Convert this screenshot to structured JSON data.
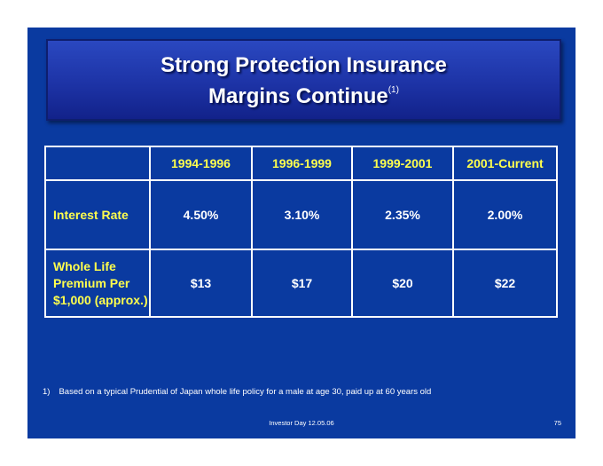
{
  "title": {
    "line1": "Strong Protection Insurance",
    "line2": "Margins Continue",
    "footnote_marker": "(1)"
  },
  "table": {
    "corner": "",
    "columns": [
      "1994-1996",
      "1996-1999",
      "1999-2001",
      "2001-Current"
    ],
    "rows": [
      {
        "label_lines": [
          "Interest Rate"
        ],
        "values": [
          "4.50%",
          "3.10%",
          "2.35%",
          "2.00%"
        ]
      },
      {
        "label_lines": [
          "Whole Life",
          "Premium Per",
          "$1,000 (approx.)"
        ],
        "values": [
          "$13",
          "$17",
          "$20",
          "$22"
        ]
      }
    ]
  },
  "footnote": {
    "number": "1)",
    "text": "Based on a typical Prudential of Japan whole life policy for a male at age 30, paid up at  60 years old"
  },
  "footer": {
    "event": "Investor Day 12.05.06",
    "page": "75"
  },
  "colors": {
    "background": "#0a3aa0",
    "title_box": "#1d33a6",
    "label_text": "#ffff4d",
    "value_text": "#ffffff",
    "table_border": "#ffffff"
  }
}
